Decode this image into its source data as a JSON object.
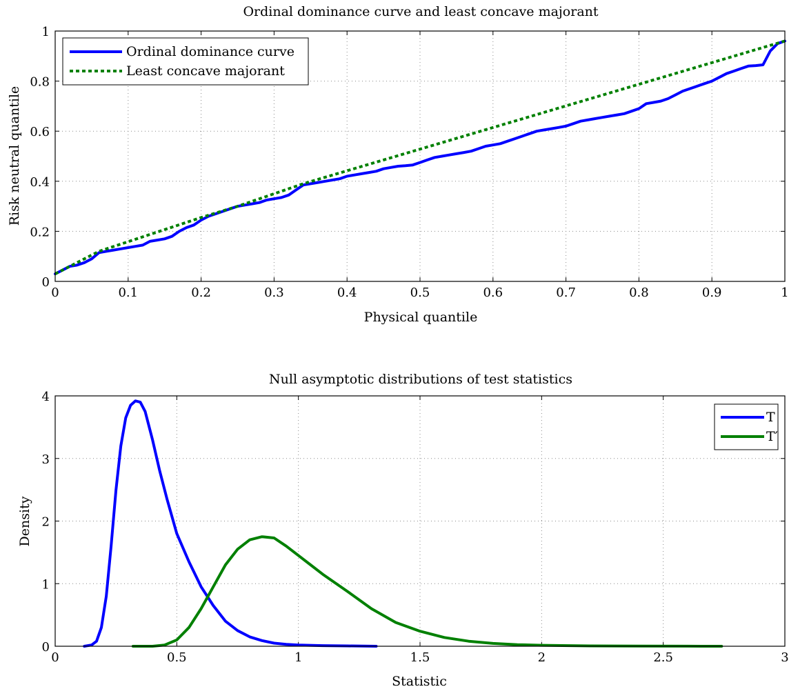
{
  "chart_data": [
    {
      "type": "line",
      "title": "Ordinal dominance curve and least concave majorant",
      "xlabel": "Physical quantile",
      "ylabel": "Risk neutral quantile",
      "xlim": [
        0,
        1
      ],
      "ylim": [
        0,
        1
      ],
      "xticks": [
        "0",
        "0.1",
        "0.2",
        "0.3",
        "0.4",
        "0.5",
        "0.6",
        "0.7",
        "0.8",
        "0.9",
        "1"
      ],
      "yticks": [
        "0",
        "0.2",
        "0.4",
        "0.6",
        "0.8",
        "1"
      ],
      "grid": true,
      "legend_position": "top-left",
      "series": [
        {
          "name": "Ordinal dominance curve",
          "color": "#0000ff",
          "style": "solid",
          "x": [
            0,
            0.01,
            0.02,
            0.03,
            0.04,
            0.05,
            0.06,
            0.07,
            0.08,
            0.09,
            0.1,
            0.11,
            0.12,
            0.13,
            0.14,
            0.15,
            0.16,
            0.17,
            0.18,
            0.19,
            0.2,
            0.21,
            0.22,
            0.23,
            0.24,
            0.25,
            0.26,
            0.27,
            0.28,
            0.29,
            0.3,
            0.31,
            0.32,
            0.33,
            0.34,
            0.35,
            0.36,
            0.37,
            0.38,
            0.39,
            0.4,
            0.41,
            0.42,
            0.43,
            0.44,
            0.45,
            0.46,
            0.47,
            0.48,
            0.49,
            0.5,
            0.51,
            0.52,
            0.53,
            0.54,
            0.55,
            0.56,
            0.57,
            0.58,
            0.59,
            0.6,
            0.61,
            0.62,
            0.63,
            0.64,
            0.65,
            0.66,
            0.67,
            0.68,
            0.69,
            0.7,
            0.71,
            0.72,
            0.73,
            0.74,
            0.75,
            0.76,
            0.77,
            0.78,
            0.79,
            0.8,
            0.81,
            0.82,
            0.83,
            0.84,
            0.85,
            0.86,
            0.87,
            0.88,
            0.89,
            0.9,
            0.91,
            0.92,
            0.93,
            0.94,
            0.95,
            0.96,
            0.97,
            0.98,
            0.99,
            1.0
          ],
          "y": [
            0.03,
            0.045,
            0.06,
            0.065,
            0.075,
            0.09,
            0.115,
            0.12,
            0.125,
            0.13,
            0.135,
            0.14,
            0.145,
            0.16,
            0.165,
            0.17,
            0.18,
            0.2,
            0.215,
            0.225,
            0.245,
            0.26,
            0.27,
            0.28,
            0.29,
            0.3,
            0.305,
            0.31,
            0.315,
            0.325,
            0.33,
            0.335,
            0.345,
            0.365,
            0.385,
            0.39,
            0.395,
            0.4,
            0.405,
            0.41,
            0.42,
            0.425,
            0.43,
            0.435,
            0.44,
            0.45,
            0.455,
            0.46,
            0.462,
            0.465,
            0.475,
            0.485,
            0.495,
            0.5,
            0.505,
            0.51,
            0.515,
            0.52,
            0.53,
            0.54,
            0.545,
            0.55,
            0.56,
            0.57,
            0.58,
            0.59,
            0.6,
            0.605,
            0.61,
            0.615,
            0.62,
            0.63,
            0.64,
            0.645,
            0.65,
            0.655,
            0.66,
            0.665,
            0.67,
            0.68,
            0.69,
            0.71,
            0.715,
            0.72,
            0.73,
            0.745,
            0.76,
            0.77,
            0.78,
            0.79,
            0.8,
            0.815,
            0.83,
            0.84,
            0.85,
            0.86,
            0.862,
            0.865,
            0.92,
            0.95,
            0.96
          ]
        },
        {
          "name": "Least concave majorant",
          "color": "#008000",
          "style": "dotted",
          "x": [
            0,
            0.06,
            0.2,
            0.25,
            0.34,
            1.0
          ],
          "y": [
            0.03,
            0.12,
            0.255,
            0.3,
            0.39,
            0.96
          ]
        }
      ]
    },
    {
      "type": "line",
      "title": "Null asymptotic distributions of test statistics",
      "xlabel": "Statistic",
      "ylabel": "Density",
      "xlim": [
        0,
        3
      ],
      "ylim": [
        0,
        4
      ],
      "xticks": [
        "0",
        "0.5",
        "1",
        "1.5",
        "2",
        "2.5",
        "3"
      ],
      "yticks": [
        "0",
        "1",
        "2",
        "3",
        "4"
      ],
      "grid": true,
      "legend_position": "top-right",
      "series": [
        {
          "name": "T",
          "color": "#0000ff",
          "style": "solid",
          "x": [
            0.12,
            0.15,
            0.17,
            0.19,
            0.21,
            0.23,
            0.25,
            0.27,
            0.29,
            0.31,
            0.33,
            0.35,
            0.37,
            0.4,
            0.43,
            0.46,
            0.5,
            0.55,
            0.6,
            0.65,
            0.7,
            0.75,
            0.8,
            0.85,
            0.9,
            0.95,
            1.0,
            1.1,
            1.2,
            1.32
          ],
          "y": [
            0.0,
            0.02,
            0.08,
            0.3,
            0.8,
            1.6,
            2.5,
            3.2,
            3.65,
            3.85,
            3.92,
            3.9,
            3.75,
            3.3,
            2.8,
            2.35,
            1.8,
            1.35,
            0.95,
            0.65,
            0.4,
            0.25,
            0.15,
            0.09,
            0.05,
            0.03,
            0.02,
            0.01,
            0.005,
            0.0
          ]
        },
        {
          "name": "T′",
          "color": "#008000",
          "style": "solid",
          "x": [
            0.32,
            0.4,
            0.45,
            0.5,
            0.55,
            0.6,
            0.65,
            0.7,
            0.75,
            0.8,
            0.85,
            0.9,
            0.95,
            1.0,
            1.05,
            1.1,
            1.2,
            1.3,
            1.4,
            1.5,
            1.6,
            1.7,
            1.8,
            1.9,
            2.0,
            2.2,
            2.4,
            2.6,
            2.74
          ],
          "y": [
            0.0,
            0.0,
            0.02,
            0.1,
            0.3,
            0.6,
            0.95,
            1.3,
            1.55,
            1.7,
            1.75,
            1.73,
            1.6,
            1.45,
            1.3,
            1.15,
            0.88,
            0.6,
            0.38,
            0.24,
            0.14,
            0.08,
            0.045,
            0.025,
            0.015,
            0.005,
            0.002,
            0.001,
            0.0
          ]
        }
      ]
    }
  ]
}
